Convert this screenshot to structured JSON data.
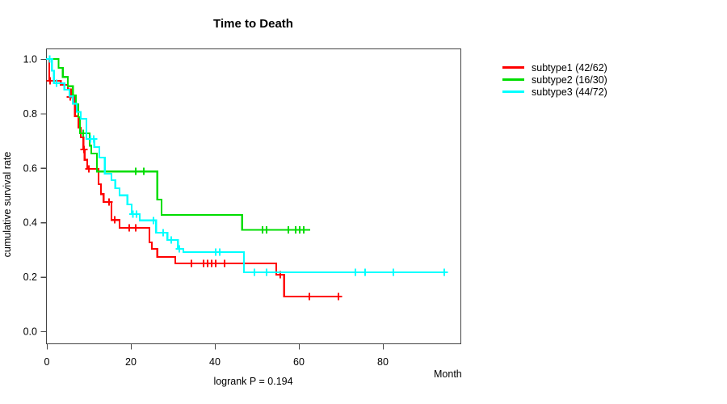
{
  "chart_data": {
    "type": "line",
    "subtype": "kaplan-meier-step-curves",
    "title": "Time to Death",
    "xlabel": "Month",
    "ylabel": "cumulative survival rate",
    "footnote": "logrank P = 0.194",
    "xlim": [
      0,
      98.5
    ],
    "ylim": [
      0.0,
      1.0
    ],
    "x_ticks": [
      0,
      20,
      40,
      60,
      80
    ],
    "y_ticks": [
      1.0,
      0.8,
      0.6,
      0.4,
      0.2,
      0.0
    ],
    "grid": false,
    "legend_position": "right",
    "axis_color": "#444444",
    "series": [
      {
        "id": "subtype1",
        "label": "subtype1 (42/62)",
        "color": "#ff0000",
        "end": 69.4,
        "steps": [
          [
            0,
            1.0
          ],
          [
            0.6,
            0.92
          ],
          [
            3.3,
            0.905
          ],
          [
            5.0,
            0.889
          ],
          [
            5.8,
            0.86
          ],
          [
            6.7,
            0.79
          ],
          [
            7.5,
            0.748
          ],
          [
            8.1,
            0.712
          ],
          [
            8.7,
            0.668
          ],
          [
            9.0,
            0.63
          ],
          [
            9.6,
            0.596
          ],
          [
            12.3,
            0.54
          ],
          [
            12.9,
            0.504
          ],
          [
            13.5,
            0.475
          ],
          [
            15.4,
            0.409
          ],
          [
            17.3,
            0.38
          ],
          [
            24.4,
            0.326
          ],
          [
            25.0,
            0.303
          ],
          [
            26.3,
            0.273
          ],
          [
            30.6,
            0.249
          ],
          [
            54.6,
            0.208
          ],
          [
            56.5,
            0.128
          ]
        ],
        "censors": [
          [
            0.8,
            0.92
          ],
          [
            5.6,
            0.86
          ],
          [
            8.8,
            0.668
          ],
          [
            10.0,
            0.596
          ],
          [
            14.8,
            0.475
          ],
          [
            16.2,
            0.409
          ],
          [
            19.6,
            0.38
          ],
          [
            21.2,
            0.38
          ],
          [
            34.4,
            0.249
          ],
          [
            37.3,
            0.249
          ],
          [
            38.3,
            0.249
          ],
          [
            39.2,
            0.249
          ],
          [
            40.2,
            0.249
          ],
          [
            42.3,
            0.249
          ],
          [
            55.6,
            0.208
          ],
          [
            62.5,
            0.128
          ],
          [
            69.4,
            0.128
          ]
        ]
      },
      {
        "id": "subtype2",
        "label": "subtype2 (16/30)",
        "color": "#00dd00",
        "end": 62.7,
        "steps": [
          [
            0,
            1.0
          ],
          [
            2.8,
            0.967
          ],
          [
            3.8,
            0.934
          ],
          [
            5.0,
            0.9
          ],
          [
            6.2,
            0.866
          ],
          [
            6.9,
            0.833
          ],
          [
            7.5,
            0.786
          ],
          [
            7.9,
            0.727
          ],
          [
            10.2,
            0.682
          ],
          [
            10.6,
            0.653
          ],
          [
            11.9,
            0.587
          ],
          [
            26.3,
            0.484
          ],
          [
            27.3,
            0.427
          ],
          [
            46.5,
            0.372
          ]
        ],
        "censors": [
          [
            8.7,
            0.727
          ],
          [
            21.2,
            0.587
          ],
          [
            23.1,
            0.587
          ],
          [
            51.3,
            0.372
          ],
          [
            52.3,
            0.372
          ],
          [
            57.5,
            0.372
          ],
          [
            59.2,
            0.372
          ],
          [
            60.2,
            0.372
          ],
          [
            61.2,
            0.372
          ]
        ]
      },
      {
        "id": "subtype3",
        "label": "subtype3 (44/72)",
        "color": "#00ffff",
        "end": 94.6,
        "steps": [
          [
            0,
            1.0
          ],
          [
            1.2,
            0.957
          ],
          [
            1.7,
            0.911
          ],
          [
            4.2,
            0.887
          ],
          [
            5.4,
            0.863
          ],
          [
            6.2,
            0.836
          ],
          [
            7.1,
            0.806
          ],
          [
            8.1,
            0.78
          ],
          [
            9.4,
            0.706
          ],
          [
            11.3,
            0.677
          ],
          [
            12.5,
            0.638
          ],
          [
            13.8,
            0.579
          ],
          [
            15.4,
            0.555
          ],
          [
            16.3,
            0.525
          ],
          [
            17.3,
            0.499
          ],
          [
            19.2,
            0.466
          ],
          [
            20.2,
            0.43
          ],
          [
            22.1,
            0.407
          ],
          [
            26.0,
            0.362
          ],
          [
            28.7,
            0.335
          ],
          [
            31.2,
            0.303
          ],
          [
            32.5,
            0.291
          ],
          [
            46.9,
            0.217
          ]
        ],
        "censors": [
          [
            0.7,
            1.0
          ],
          [
            2.3,
            0.911
          ],
          [
            10.4,
            0.706
          ],
          [
            11.2,
            0.706
          ],
          [
            20.5,
            0.43
          ],
          [
            21.3,
            0.43
          ],
          [
            25.4,
            0.407
          ],
          [
            27.7,
            0.362
          ],
          [
            29.6,
            0.335
          ],
          [
            31.5,
            0.303
          ],
          [
            40.2,
            0.291
          ],
          [
            41.2,
            0.291
          ],
          [
            49.4,
            0.217
          ],
          [
            52.3,
            0.217
          ],
          [
            73.5,
            0.217
          ],
          [
            75.8,
            0.217
          ],
          [
            82.5,
            0.217
          ],
          [
            94.6,
            0.217
          ]
        ]
      }
    ]
  }
}
